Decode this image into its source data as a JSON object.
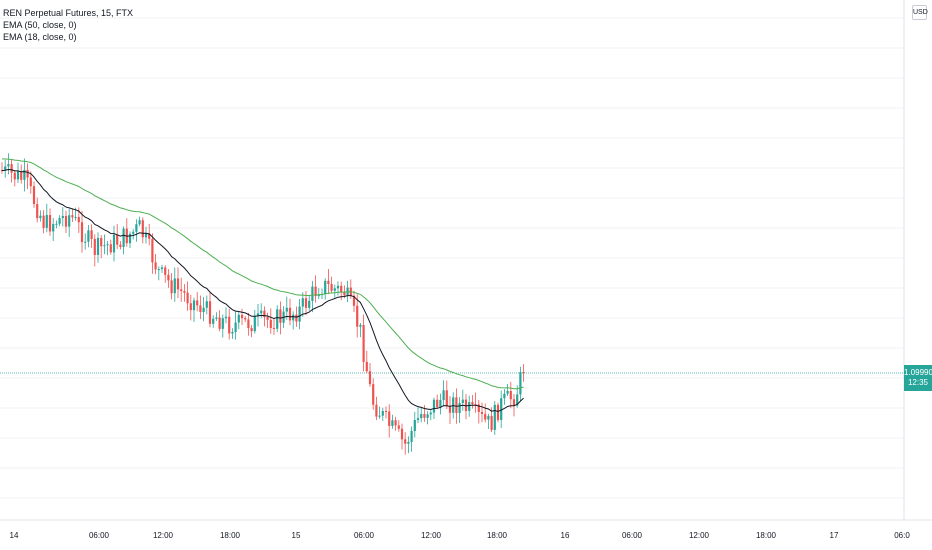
{
  "legend": {
    "symbol": "REN Perpetual Futures, 15, FTX",
    "ema1": "EMA (50, close, 0)",
    "ema2": "EMA (18, close, 0)"
  },
  "toolbar": {
    "currency": "USD"
  },
  "last_price": {
    "value": "1.09990",
    "countdown": "12:35"
  },
  "colors": {
    "up": "#26a69a",
    "down": "#ef5350",
    "ema50": "#4caf50",
    "ema18": "#131722",
    "grid": "#eef0f3"
  },
  "chart_data": {
    "type": "candlestick",
    "x_ticks": [
      "14",
      "06:00",
      "12:00",
      "18:00",
      "15",
      "06:00",
      "12:00",
      "18:00",
      "16",
      "06:00",
      "12:00",
      "18:00",
      "17",
      "06:0"
    ],
    "series": [
      {
        "name": "EMA (50, close, 0)",
        "color": "#4caf50"
      },
      {
        "name": "EMA (18, close, 0)",
        "color": "#131722"
      }
    ],
    "last_price": 1.0999,
    "grid": true,
    "price_axis": "right"
  }
}
